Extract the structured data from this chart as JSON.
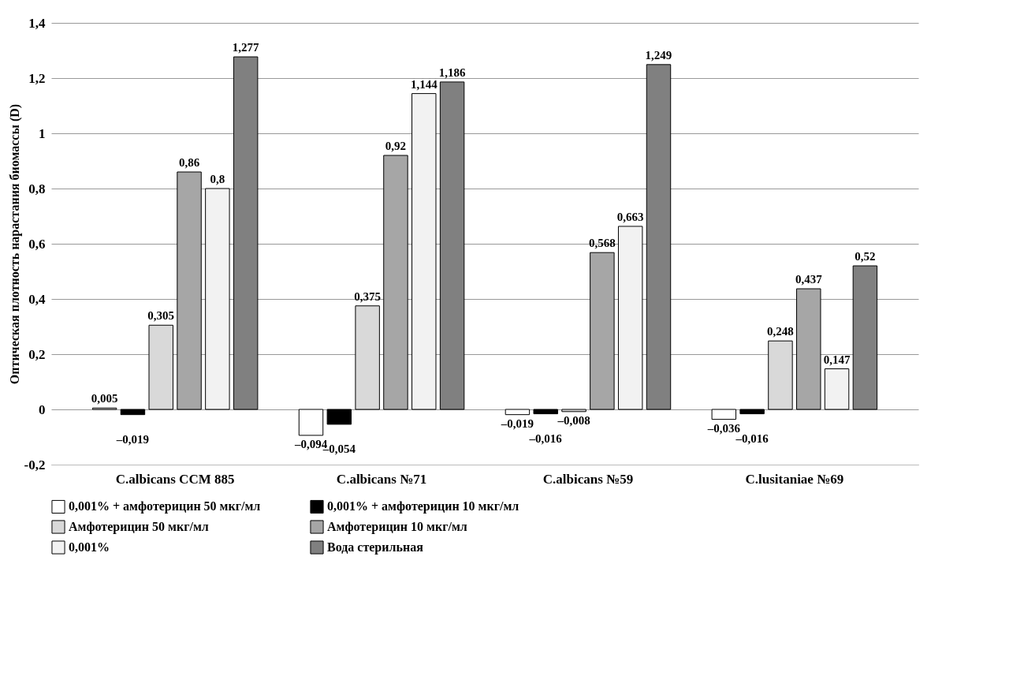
{
  "chart_data": {
    "type": "bar",
    "ylabel": "Оптическая плотность нарастания биомассы (D)",
    "categories": [
      "C.albicans CCM 885",
      "C.albicans №71",
      "C.albicans №59",
      "C.lusitaniae №69"
    ],
    "series": [
      {
        "name": "0,001% + амфотерицин 50 мкг/мл",
        "color": "#ffffff",
        "values": [
          0.005,
          -0.094,
          -0.019,
          -0.036
        ],
        "value_labels": [
          "0,005",
          "–0,094",
          "–0,019",
          "–0,036"
        ]
      },
      {
        "name": "0,001% + амфотерицин 10 мкг/мл",
        "color": "#000000",
        "values": [
          -0.019,
          -0.054,
          -0.016,
          -0.016
        ],
        "value_labels": [
          "–0,019",
          "–0,054",
          "–0,016",
          "–0,016"
        ]
      },
      {
        "name": "Амфотерицин 50 мкг/мл",
        "color": "#d9d9d9",
        "values": [
          0.305,
          0.375,
          -0.008,
          0.248
        ],
        "value_labels": [
          "0,305",
          "0,375",
          "–0,008",
          "0,248"
        ]
      },
      {
        "name": "Амфотерицин 10 мкг/мл",
        "color": "#a6a6a6",
        "values": [
          0.86,
          0.92,
          0.568,
          0.437
        ],
        "value_labels": [
          "0,86",
          "0,92",
          "0,568",
          "0,437"
        ]
      },
      {
        "name": "0,001%",
        "color": "#f2f2f2",
        "values": [
          0.8,
          1.144,
          0.663,
          0.147
        ],
        "value_labels": [
          "0,8",
          "1,144",
          "0,663",
          "0,147"
        ]
      },
      {
        "name": "Вода стерильная",
        "color": "#808080",
        "values": [
          1.277,
          1.186,
          1.249,
          0.52
        ],
        "value_labels": [
          "1,277",
          "1,186",
          "1,249",
          "0,52"
        ]
      }
    ],
    "ylim": [
      -0.2,
      1.4
    ],
    "yticks": [
      {
        "value": -0.2,
        "label": "-0,2"
      },
      0,
      {
        "value": 0.2,
        "label": "0,2"
      },
      {
        "value": 0.4,
        "label": "0,4"
      },
      {
        "value": 0.6,
        "label": "0,6"
      },
      {
        "value": 0.8,
        "label": "0,8"
      },
      1,
      {
        "value": 1.2,
        "label": "1,2"
      },
      {
        "value": 1.4,
        "label": "1,4"
      }
    ],
    "grid": "y",
    "legend": "bottom"
  }
}
